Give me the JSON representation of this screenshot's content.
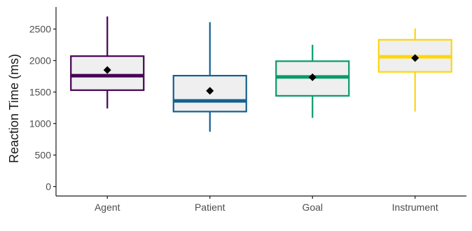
{
  "chart_data": {
    "type": "boxplot",
    "title": "",
    "xlabel": "",
    "ylabel": "Reaction Time (ms)",
    "ylim": [
      -150,
      2850
    ],
    "yticks": [
      0,
      500,
      1000,
      1500,
      2000,
      2500
    ],
    "grid": false,
    "categories": [
      "Agent",
      "Patient",
      "Goal",
      "Instrument"
    ],
    "boxes": [
      {
        "category": "Agent",
        "whisker_low": 1240,
        "q1": 1530,
        "median": 1760,
        "q3": 2070,
        "whisker_high": 2700,
        "mean": 1850,
        "color": "#440154"
      },
      {
        "category": "Patient",
        "whisker_low": 870,
        "q1": 1190,
        "median": 1360,
        "q3": 1760,
        "whisker_high": 2610,
        "mean": 1520,
        "color": "#15608f"
      },
      {
        "category": "Goal",
        "whisker_low": 1090,
        "q1": 1440,
        "median": 1740,
        "q3": 1990,
        "whisker_high": 2250,
        "mean": 1735,
        "color": "#0a9a6a"
      },
      {
        "category": "Instrument",
        "whisker_low": 1190,
        "q1": 1820,
        "median": 2060,
        "q3": 2330,
        "whisker_high": 2510,
        "mean": 2040,
        "color": "#fdd60e"
      }
    ],
    "box_fill": "#efefef",
    "mean_marker_color": "#000000",
    "axis_color": "#1a1a1a"
  }
}
